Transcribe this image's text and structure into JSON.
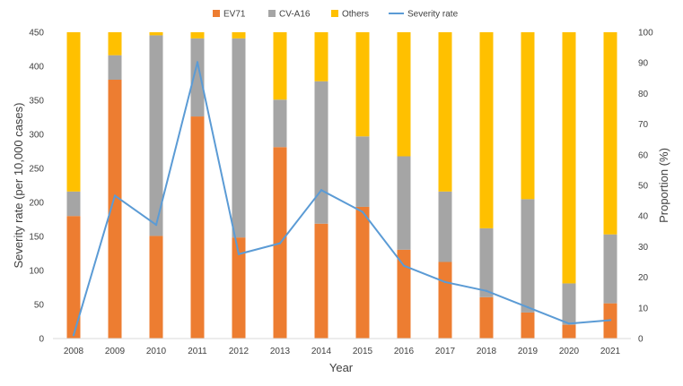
{
  "chart_data": {
    "type": "bar",
    "stacked": true,
    "categories": [
      "2008",
      "2009",
      "2010",
      "2011",
      "2012",
      "2013",
      "2014",
      "2015",
      "2016",
      "2017",
      "2018",
      "2019",
      "2020",
      "2021"
    ],
    "series": [
      {
        "name": "EV71",
        "axis": "right",
        "color": "#ED7D31",
        "values": [
          40,
          84.5,
          33.5,
          72.5,
          33,
          62.5,
          37.5,
          43,
          29,
          25,
          13.5,
          8.5,
          4.5,
          11.5
        ]
      },
      {
        "name": "CV-A16",
        "axis": "right",
        "color": "#A5A5A5",
        "values": [
          8,
          8,
          65.5,
          25.5,
          65,
          15.5,
          46.5,
          23,
          30.5,
          23,
          22.5,
          37,
          13.5,
          22.5
        ]
      },
      {
        "name": "Others",
        "axis": "right",
        "color": "#FFC000",
        "values": [
          52,
          7.5,
          1,
          2,
          2,
          22,
          16,
          34,
          40.5,
          52,
          64,
          54.5,
          82,
          66
        ]
      },
      {
        "name": "Severity rate",
        "axis": "left",
        "type": "line",
        "color": "#5B9BD5",
        "values": [
          5,
          210,
          167,
          406,
          124,
          140,
          218,
          186,
          107,
          83,
          70,
          46,
          22,
          27
        ]
      }
    ],
    "legend": [
      "EV71",
      "CV-A16",
      "Others",
      "Severity rate"
    ],
    "legend_position": "top",
    "xlabel": "Year",
    "ylabel": "Severity rate (per 10,000 cases)",
    "y2label": "Proportion (%)",
    "ylim": [
      0,
      450
    ],
    "y2lim": [
      0,
      100
    ],
    "yticks": [
      0,
      50,
      100,
      150,
      200,
      250,
      300,
      350,
      400,
      450
    ],
    "y2ticks": [
      0,
      10,
      20,
      30,
      40,
      50,
      60,
      70,
      80,
      90,
      100
    ],
    "grid": false
  }
}
